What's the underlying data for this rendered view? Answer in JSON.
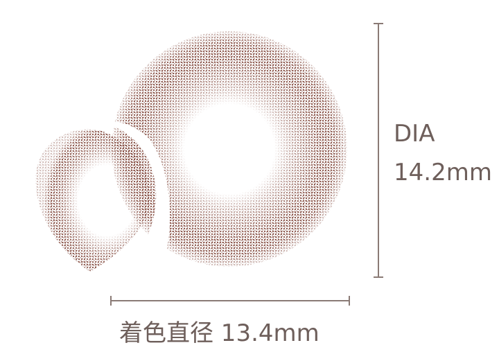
{
  "diameter": {
    "label": "DIA",
    "value": "14.2mm"
  },
  "color_diameter": {
    "text": "着色直径 13.4mm"
  },
  "colors": {
    "lens_tint": "#7a3a2c",
    "text": "#6e5f5b",
    "rule": "#8a7a75"
  }
}
